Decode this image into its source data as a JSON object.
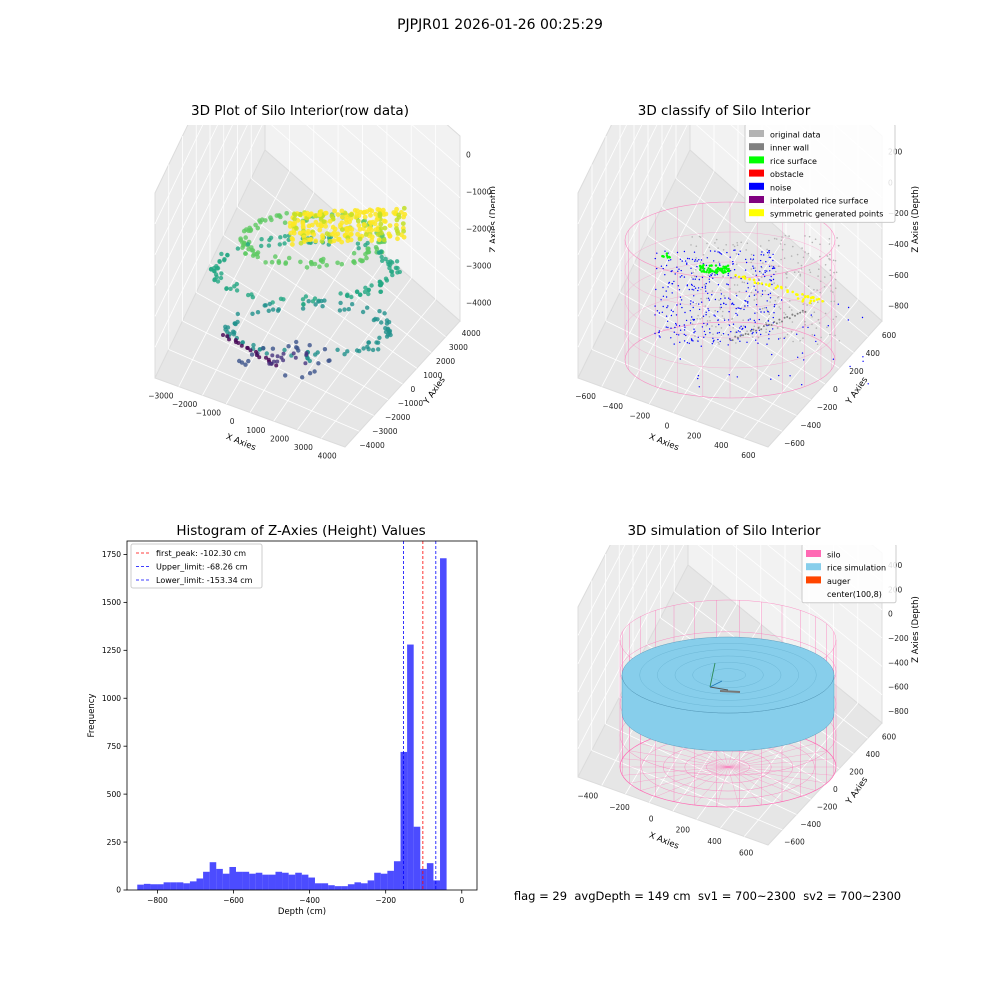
{
  "figure": {
    "title": "PJPJR01 2026-01-26 00:25:29",
    "footer": {
      "flag": "flag = 29",
      "avg_depth": "avgDepth = 149 cm",
      "sv1": "sv1 = 700~2300",
      "sv2": "sv2 = 700~2300"
    }
  },
  "colors": {
    "hist_bar": "#0000ff",
    "peak_line": "#ff0000",
    "limit_line": "#0000ff",
    "silo": "#ff69b4",
    "rice_simulation": "#87ceeb",
    "auger": "#ff4500",
    "original_data": "#b3b3b3",
    "inner_wall": "#808080",
    "rice_surface": "#00ff00",
    "obstacle": "#ff0000",
    "noise": "#0000ff",
    "interpolated_rice_surface": "#800080",
    "symmetric_generated_points": "#ffff00"
  },
  "chart_data": [
    {
      "type": "scatter",
      "title": "3D Plot of Silo Interior(row data)",
      "xlabel": "X Axies",
      "ylabel": "Y Axies",
      "zlabel": "Z Axies (Depth)",
      "x_ticks": [
        "−3000",
        "−2000",
        "−1000",
        "0",
        "1000",
        "2000",
        "3000",
        "4000"
      ],
      "y_ticks": [
        "−4000",
        "−3000",
        "−2000",
        "−1000",
        "0",
        "1000",
        "2000",
        "3000",
        "4000"
      ],
      "z_ticks": [
        "−4000",
        "−3000",
        "−2000",
        "−1000",
        "0"
      ],
      "xlim": [
        -3500,
        4500
      ],
      "ylim": [
        -4500,
        4500
      ],
      "zlim": [
        -4800,
        300
      ],
      "colormap": "viridis",
      "notes": "points colored by depth; yellow cluster near z≈-800 around center, green ring near z≈-2000, teal ring near z≈-3300, purple points near z≈-4300"
    },
    {
      "type": "scatter",
      "title": "3D classify of Silo Interior",
      "xlabel": "X Axies",
      "ylabel": "Y Axies",
      "zlabel": "Z Axies (Depth)",
      "x_ticks": [
        "−600",
        "−400",
        "−200",
        "0",
        "200",
        "400",
        "600"
      ],
      "y_ticks": [
        "−600",
        "−400",
        "−200",
        "0",
        "200",
        "400",
        "600"
      ],
      "z_ticks": [
        "−800",
        "−600",
        "−400",
        "−200",
        "0",
        "200"
      ],
      "xlim": [
        -650,
        650
      ],
      "ylim": [
        -650,
        650
      ],
      "zlim": [
        -900,
        250
      ],
      "legend_position": "upper-right",
      "legend": [
        {
          "label": "original data",
          "color": "#b3b3b3"
        },
        {
          "label": "inner wall",
          "color": "#808080"
        },
        {
          "label": "rice surface",
          "color": "#00ff00"
        },
        {
          "label": "obstacle",
          "color": "#ff0000"
        },
        {
          "label": "noise",
          "color": "#0000ff"
        },
        {
          "label": "interpolated rice surface",
          "color": "#800080"
        },
        {
          "label": "symmetric generated points",
          "color": "#ffff00"
        }
      ]
    },
    {
      "type": "bar",
      "title": "Histogram of Z-Axies (Height) Values",
      "xlabel": "Depth (cm)",
      "ylabel": "Frequency",
      "xlim": [
        -880,
        40
      ],
      "ylim": [
        0,
        1820
      ],
      "x_ticks": [
        -800,
        -600,
        -400,
        -200,
        0
      ],
      "y_ticks": [
        0,
        250,
        500,
        750,
        1000,
        1250,
        1500,
        1750
      ],
      "x_tick_labels": [
        "−800",
        "−600",
        "−400",
        "−200",
        "0"
      ],
      "bin_width": 17.3,
      "bin_start": -853,
      "values": [
        28,
        32,
        30,
        30,
        40,
        40,
        40,
        35,
        45,
        60,
        95,
        145,
        110,
        85,
        120,
        95,
        95,
        85,
        90,
        80,
        80,
        95,
        90,
        80,
        90,
        80,
        65,
        35,
        35,
        25,
        20,
        20,
        30,
        40,
        35,
        50,
        90,
        85,
        100,
        150,
        720,
        1280,
        330,
        110,
        140,
        50,
        1730
      ],
      "vlines": [
        {
          "name": "first_peak: -102.30 cm",
          "x": -102.3,
          "color": "#ff0000"
        },
        {
          "name": "Upper_limit: -68.26 cm",
          "x": -68.26,
          "color": "#0000ff"
        },
        {
          "name": "Lower_limit: -153.34 cm",
          "x": -153.34,
          "color": "#0000ff"
        }
      ],
      "legend_position": "upper-left",
      "grid": false
    },
    {
      "type": "scatter",
      "title": "3D simulation of Silo Interior",
      "xlabel": "X Axies",
      "ylabel": "Y Axies",
      "zlabel": "Z Axies (Depth)",
      "x_ticks": [
        "−400",
        "−200",
        "0",
        "200",
        "400",
        "600"
      ],
      "y_ticks": [
        "−600",
        "−400",
        "−200",
        "0",
        "200",
        "400",
        "600"
      ],
      "z_ticks": [
        "−800",
        "−600",
        "−400",
        "−200",
        "0",
        "200",
        "400"
      ],
      "xlim": [
        -600,
        750
      ],
      "ylim": [
        -700,
        700
      ],
      "zlim": [
        -950,
        450
      ],
      "legend_position": "upper-right",
      "legend": [
        {
          "label": "silo",
          "color": "#ff69b4"
        },
        {
          "label": "rice simulation",
          "color": "#87ceeb"
        },
        {
          "label": "auger",
          "color": "#ff4500"
        },
        {
          "label": "center(100,8)",
          "color": ""
        }
      ]
    }
  ]
}
